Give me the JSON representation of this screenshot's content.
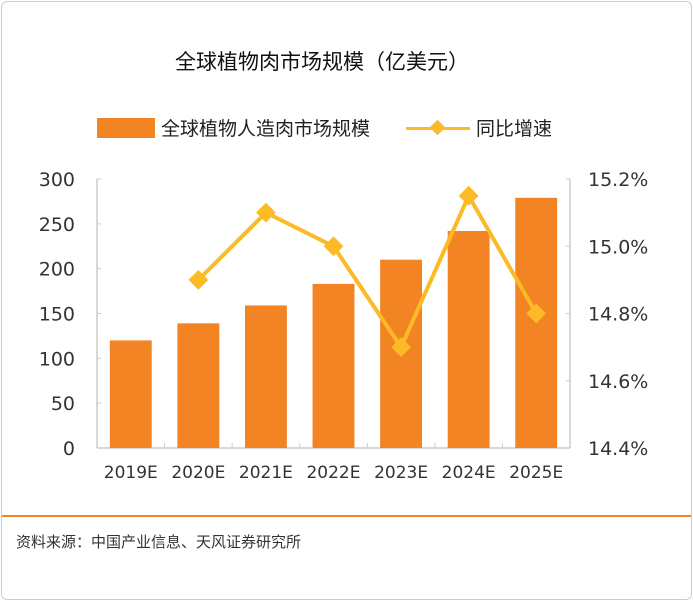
{
  "chart_data": {
    "type": "bar+line",
    "title": "全球植物肉市场规模（亿美元）",
    "categories": [
      "2019E",
      "2020E",
      "2021E",
      "2022E",
      "2023E",
      "2024E",
      "2025E"
    ],
    "series": [
      {
        "name": "全球植物人造肉市场规模",
        "type": "bar",
        "axis": "left",
        "values": [
          120,
          139,
          159,
          183,
          210,
          242,
          279
        ],
        "color": "#F28424"
      },
      {
        "name": "同比增速",
        "type": "line",
        "axis": "right",
        "values": [
          null,
          14.9,
          15.1,
          15.0,
          14.7,
          15.15,
          14.8
        ],
        "color": "#FBBA26"
      }
    ],
    "left_axis": {
      "ylim": [
        0,
        300
      ],
      "ticks": [
        0,
        50,
        100,
        150,
        200,
        250,
        300
      ],
      "tick_labels": [
        "0",
        "50",
        "100",
        "150",
        "200",
        "250",
        "300"
      ]
    },
    "right_axis": {
      "ylim": [
        14.4,
        15.2
      ],
      "ticks": [
        14.4,
        14.6,
        14.8,
        15.0,
        15.2
      ],
      "tick_labels": [
        "14.4%",
        "14.6%",
        "14.8%",
        "15.0%",
        "15.2%"
      ]
    },
    "legend": "top"
  },
  "source": "资料来源：中国产业信息、天风证券研究所"
}
